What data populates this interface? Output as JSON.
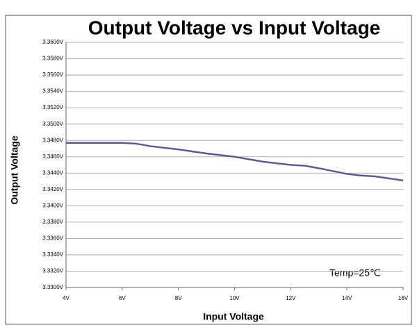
{
  "chart_data": {
    "type": "line",
    "title": "Output Voltage vs Input Voltage",
    "x_label": "Input Voltage",
    "y_label": "Output Voltage",
    "annotation": "Temp=25℃",
    "x": [
      4,
      5,
      6,
      6.5,
      7,
      8,
      9,
      10,
      11,
      12,
      12.5,
      13,
      14,
      14.5,
      15,
      16
    ],
    "series": [
      {
        "color": "#5b5b99",
        "values": [
          3.3477,
          3.3477,
          3.3477,
          3.3476,
          3.3473,
          3.3469,
          3.3464,
          3.346,
          3.3454,
          3.345,
          3.3449,
          3.3446,
          3.3439,
          3.3437,
          3.3436,
          3.3431
        ]
      }
    ],
    "xlim": [
      4,
      16
    ],
    "xticks": [
      {
        "value": 4,
        "label": "4V"
      },
      {
        "value": 6,
        "label": "6V"
      },
      {
        "value": 8,
        "label": "8V"
      },
      {
        "value": 10,
        "label": "10V"
      },
      {
        "value": 12,
        "label": "12V"
      },
      {
        "value": 14,
        "label": "14V"
      },
      {
        "value": 16,
        "label": "16V"
      }
    ],
    "ylim": [
      3.33,
      3.36
    ],
    "yticks": [
      {
        "value": 3.33,
        "label": "3.3300V"
      },
      {
        "value": 3.332,
        "label": "3.3320V"
      },
      {
        "value": 3.334,
        "label": "3.3340V"
      },
      {
        "value": 3.336,
        "label": "3.3360V"
      },
      {
        "value": 3.338,
        "label": "3.3380V"
      },
      {
        "value": 3.34,
        "label": "3.3400V"
      },
      {
        "value": 3.342,
        "label": "3.3420V"
      },
      {
        "value": 3.344,
        "label": "3.3440V"
      },
      {
        "value": 3.346,
        "label": "3.3460V"
      },
      {
        "value": 3.348,
        "label": "3.3480V"
      },
      {
        "value": 3.35,
        "label": "3.3500V"
      },
      {
        "value": 3.352,
        "label": "3.3520V"
      },
      {
        "value": 3.354,
        "label": "3.3540V"
      },
      {
        "value": 3.356,
        "label": "3.3560V"
      },
      {
        "value": 3.358,
        "label": "3.3580V"
      },
      {
        "value": 3.36,
        "label": "3.3600V"
      }
    ],
    "grid": true
  }
}
